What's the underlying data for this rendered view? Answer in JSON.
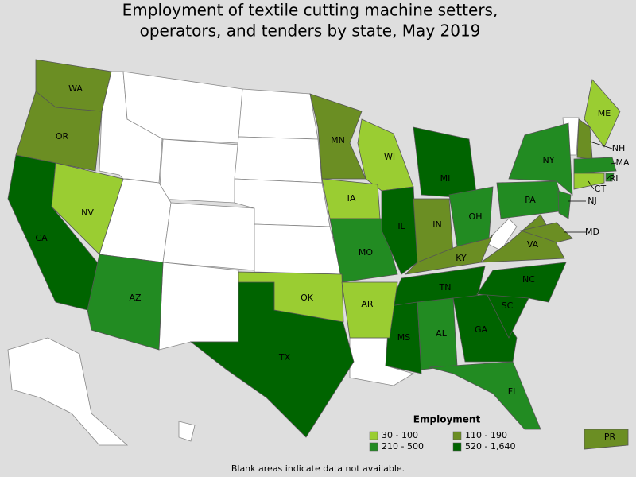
{
  "title_lines": [
    "Employment of textile cutting machine setters,",
    "operators, and tenders by state, May 2019"
  ],
  "legend": {
    "title": "Employment",
    "items": [
      {
        "label": "30 - 100",
        "color": "#9acd32"
      },
      {
        "label": "210 - 500",
        "color": "#228b22"
      },
      {
        "label": "110 - 190",
        "color": "#6b8e23"
      },
      {
        "label": "520 - 1,640",
        "color": "#006400"
      }
    ]
  },
  "states": [
    {
      "label": "WA",
      "color": "#6b8e23"
    },
    {
      "label": "OR",
      "color": "#6b8e23"
    },
    {
      "label": "CA",
      "color": "#006400"
    },
    {
      "label": "NV",
      "color": "#9acd32"
    },
    {
      "label": "AZ",
      "color": "#228b22"
    },
    {
      "label": "MN",
      "color": "#6b8e23"
    },
    {
      "label": "WI",
      "color": "#9acd32"
    },
    {
      "label": "IA",
      "color": "#9acd32"
    },
    {
      "label": "MO",
      "color": "#228b22"
    },
    {
      "label": "IL",
      "color": "#006400"
    },
    {
      "label": "MI",
      "color": "#006400"
    },
    {
      "label": "IN",
      "color": "#6b8e23"
    },
    {
      "label": "OH",
      "color": "#228b22"
    },
    {
      "label": "KY",
      "color": "#6b8e23"
    },
    {
      "label": "TN",
      "color": "#006400"
    },
    {
      "label": "MS",
      "color": "#006400"
    },
    {
      "label": "AL",
      "color": "#228b22"
    },
    {
      "label": "GA",
      "color": "#006400"
    },
    {
      "label": "FL",
      "color": "#228b22"
    },
    {
      "label": "SC",
      "color": "#006400"
    },
    {
      "label": "NC",
      "color": "#006400"
    },
    {
      "label": "VA",
      "color": "#6b8e23"
    },
    {
      "label": "PA",
      "color": "#228b22"
    },
    {
      "label": "NY",
      "color": "#228b22"
    },
    {
      "label": "ME",
      "color": "#9acd32"
    },
    {
      "label": "NH",
      "color": "#6b8e23"
    },
    {
      "label": "MA",
      "color": "#228b22"
    },
    {
      "label": "RI",
      "color": "#228b22"
    },
    {
      "label": "CT",
      "color": "#9acd32"
    },
    {
      "label": "NJ",
      "color": "#228b22"
    },
    {
      "label": "MD",
      "color": "#6b8e23"
    },
    {
      "label": "TX",
      "color": "#006400"
    },
    {
      "label": "OK",
      "color": "#9acd32"
    },
    {
      "label": "AR",
      "color": "#9acd32"
    },
    {
      "label": "PR",
      "color": "#6b8e23"
    }
  ],
  "footnote": "Blank areas indicate data not available."
}
